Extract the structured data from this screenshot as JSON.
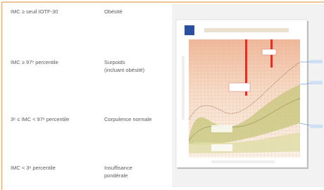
{
  "table": {
    "rows": [
      {
        "criterion": "IMC ≥ seuil IOTF-30",
        "category": [
          "Obésité"
        ]
      },
      {
        "criterion": "IMC ≥ 97ᵉ percentile",
        "category": [
          "Surpoids",
          "(incluant obésité)"
        ]
      },
      {
        "criterion": "3ᵉ ≤ IMC < 97ᵉ percentile",
        "category": [
          "Corpulence normale"
        ]
      },
      {
        "criterion": "IMC < 3ᵉ percentile",
        "category": [
          "Insuffisance",
          "pondérale"
        ]
      }
    ]
  }
}
